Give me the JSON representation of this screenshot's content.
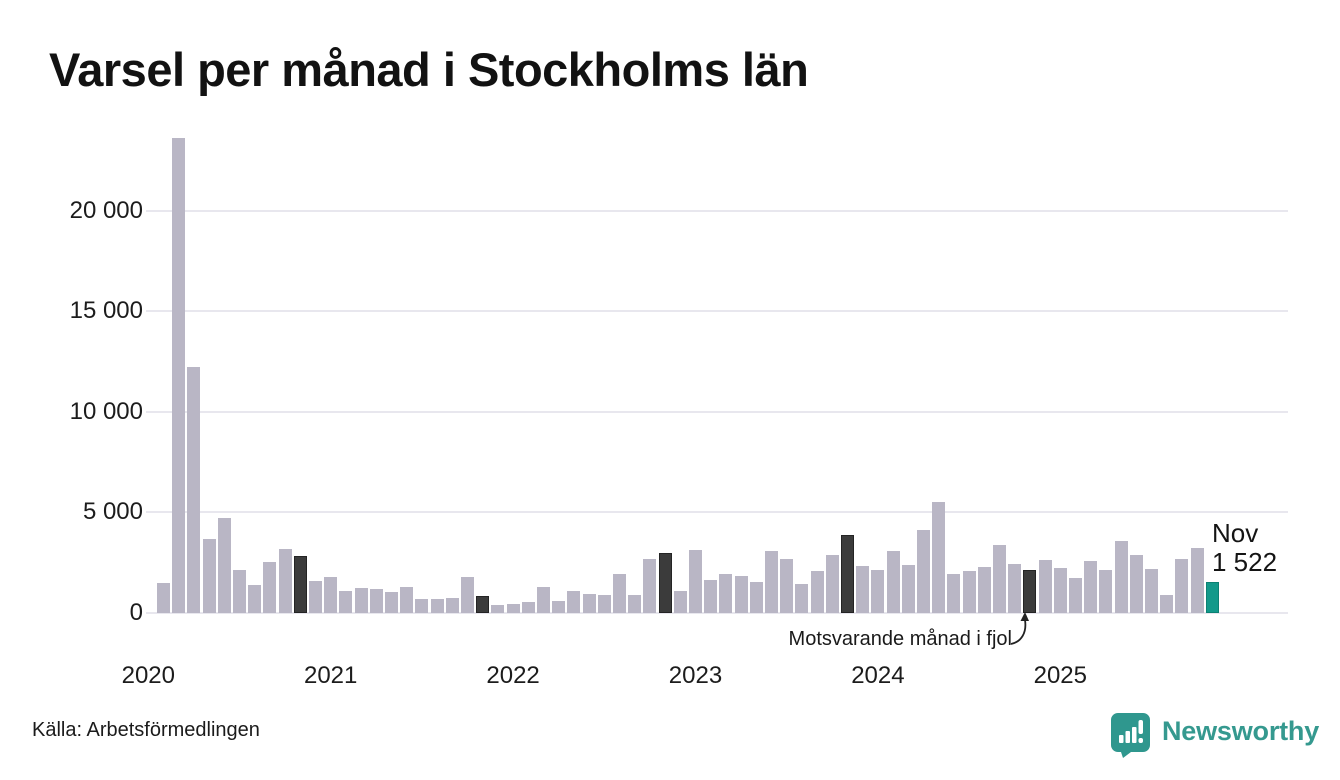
{
  "title": "Varsel per månad i Stockholms län",
  "source": "Källa: Arbetsförmedlingen",
  "branding": {
    "name": "Newsworthy",
    "color": "#35998F"
  },
  "annotations": {
    "current_month_label": "Nov",
    "current_month_value": "1 522",
    "comparison_label": "Motsvarande månad i fjol"
  },
  "colors": {
    "bar_default": "#b9b6c5",
    "bar_last_year": "#3b3b3b",
    "bar_current": "#12998a",
    "gridline": "#e8e7ee",
    "text": "#1c1c1c",
    "brand_teal": "#35998F"
  },
  "chart_data": {
    "type": "bar",
    "title": "Varsel per månad i Stockholms län",
    "xlabel": "",
    "ylabel": "",
    "ylim": [
      0,
      24000
    ],
    "grid": "horizontal",
    "yticks": [
      0,
      5000,
      10000,
      15000,
      20000
    ],
    "ytick_labels": [
      "0",
      "5 000",
      "10 000",
      "15 000",
      "20 000"
    ],
    "xtick_labels": [
      "2020",
      "2021",
      "2022",
      "2023",
      "2024",
      "2025"
    ],
    "year_ticks": [
      {
        "label": "2020",
        "bar_index": -1
      },
      {
        "label": "2021",
        "bar_index": 11
      },
      {
        "label": "2022",
        "bar_index": 23
      },
      {
        "label": "2023",
        "bar_index": 35
      },
      {
        "label": "2024",
        "bar_index": 47
      },
      {
        "label": "2025",
        "bar_index": 59
      }
    ],
    "months": [
      "2020-02",
      "2020-03",
      "2020-04",
      "2020-05",
      "2020-06",
      "2020-07",
      "2020-08",
      "2020-09",
      "2020-10",
      "2020-11",
      "2020-12",
      "2021-01",
      "2021-02",
      "2021-03",
      "2021-04",
      "2021-05",
      "2021-06",
      "2021-07",
      "2021-08",
      "2021-09",
      "2021-10",
      "2021-11",
      "2021-12",
      "2022-01",
      "2022-02",
      "2022-03",
      "2022-04",
      "2022-05",
      "2022-06",
      "2022-07",
      "2022-08",
      "2022-09",
      "2022-10",
      "2022-11",
      "2022-12",
      "2023-01",
      "2023-02",
      "2023-03",
      "2023-04",
      "2023-05",
      "2023-06",
      "2023-07",
      "2023-08",
      "2023-09",
      "2023-10",
      "2023-11",
      "2023-12",
      "2024-01",
      "2024-02",
      "2024-03",
      "2024-04",
      "2024-05",
      "2024-06",
      "2024-07",
      "2024-08",
      "2024-09",
      "2024-10",
      "2024-11",
      "2024-12",
      "2025-01",
      "2025-02",
      "2025-03",
      "2025-04",
      "2025-05",
      "2025-06",
      "2025-07",
      "2025-08",
      "2025-09",
      "2025-10",
      "2025-11"
    ],
    "values": [
      1500,
      23600,
      12200,
      3700,
      4700,
      2150,
      1400,
      2550,
      3200,
      2850,
      1600,
      1800,
      1070,
      1250,
      1190,
      1020,
      1270,
      700,
      690,
      760,
      1800,
      825,
      410,
      440,
      560,
      1300,
      600,
      1100,
      940,
      890,
      1930,
      890,
      2700,
      2990,
      1070,
      3130,
      1660,
      1960,
      1830,
      1550,
      3100,
      2700,
      1420,
      2100,
      2900,
      3870,
      2330,
      2130,
      3100,
      2400,
      4100,
      5530,
      1920,
      2100,
      2280,
      3400,
      2450,
      2150,
      2650,
      2230,
      1730,
      2600,
      2150,
      3600,
      2860,
      2200,
      900,
      2680,
      3250,
      1522
    ],
    "dark_months": [
      "2020-11",
      "2021-11",
      "2022-11",
      "2023-11",
      "2024-11"
    ],
    "current_month": "2025-11",
    "legend": "none"
  }
}
